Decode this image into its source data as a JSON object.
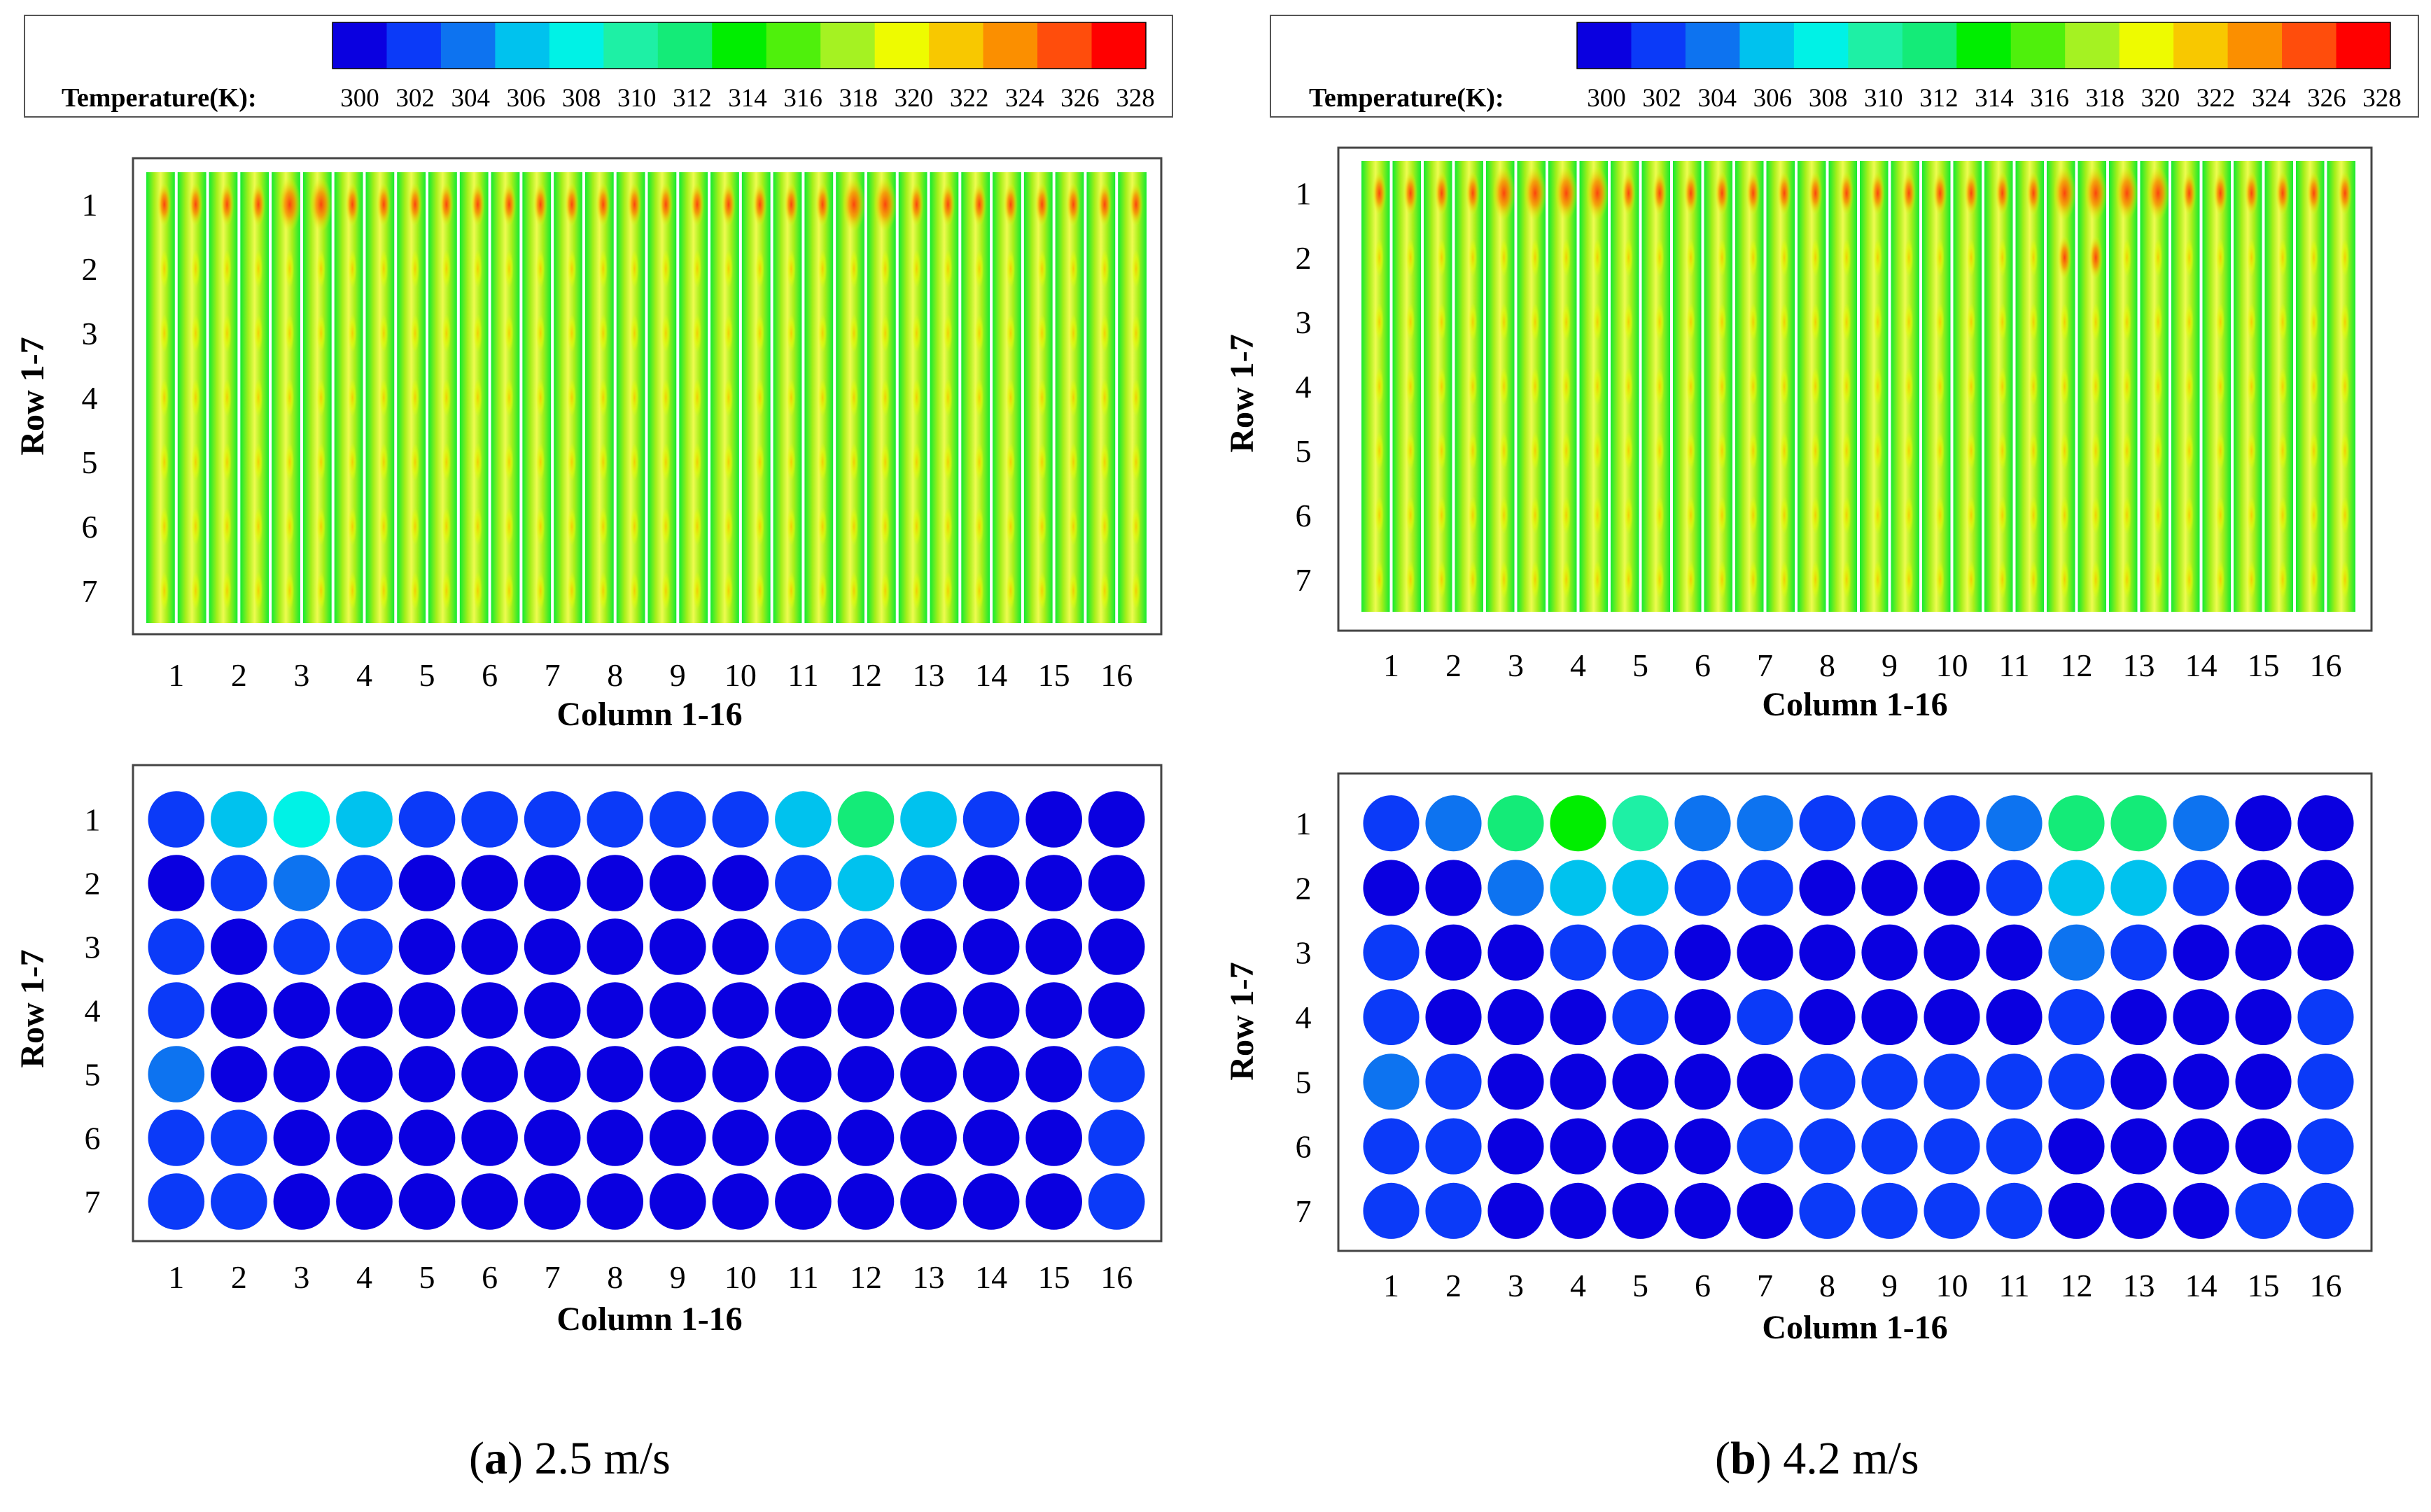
{
  "colors": {
    "colorbar": [
      "#0a00e0",
      "#0b3af8",
      "#0d73f0",
      "#00c2ee",
      "#00f2e6",
      "#1ef0a5",
      "#14eb78",
      "#00ee00",
      "#4ff00c",
      "#a5f222",
      "#eefb00",
      "#f8c800",
      "#fb8f00",
      "#ff4d0c",
      "#ff0000"
    ],
    "frame": "#000000"
  },
  "chart_data": [
    {
      "id": "a-surface",
      "type": "heatmap",
      "title": "",
      "xlabel": "Column 1-16",
      "ylabel": "Row 1-7",
      "x_ticks": [
        "1",
        "2",
        "3",
        "4",
        "5",
        "6",
        "7",
        "8",
        "9",
        "10",
        "11",
        "12",
        "13",
        "14",
        "15",
        "16"
      ],
      "y_ticks": [
        "1",
        "2",
        "3",
        "4",
        "5",
        "6",
        "7"
      ],
      "colorbar": {
        "label": "Temperature(K):",
        "ticks": [
          "300",
          "302",
          "304",
          "306",
          "308",
          "310",
          "312",
          "314",
          "316",
          "318",
          "320",
          "322",
          "324",
          "326",
          "328"
        ],
        "range": [
          300,
          328
        ]
      },
      "hotspot_rows_K": {
        "1": [
          322,
          321,
          324,
          322,
          321,
          321,
          321,
          321,
          321,
          321,
          321,
          326,
          322,
          321,
          322,
          322
        ]
      },
      "base_temperature_K": 315
    },
    {
      "id": "a-cells",
      "type": "heatmap",
      "title": "",
      "xlabel": "Column 1-16",
      "ylabel": "Row 1-7",
      "x_ticks": [
        "1",
        "2",
        "3",
        "4",
        "5",
        "6",
        "7",
        "8",
        "9",
        "10",
        "11",
        "12",
        "13",
        "14",
        "15",
        "16"
      ],
      "y_ticks": [
        "1",
        "2",
        "3",
        "4",
        "5",
        "6",
        "7"
      ],
      "cell_temperature_K": [
        [
          302.5,
          306,
          309,
          307,
          303,
          302.5,
          302,
          302.5,
          303,
          302.5,
          306,
          312,
          306,
          303,
          301,
          301
        ],
        [
          301,
          302,
          304,
          303,
          301,
          300.5,
          300.5,
          301,
          301,
          301,
          302,
          307,
          303,
          301,
          300.5,
          301
        ],
        [
          303,
          300.5,
          302,
          302,
          300.5,
          300.5,
          300.5,
          300.5,
          300.5,
          301,
          302,
          303,
          300.5,
          300.5,
          300.5,
          301
        ],
        [
          303,
          301,
          301,
          301,
          300.5,
          300.5,
          300.5,
          300.5,
          301,
          300.5,
          301,
          301,
          300.5,
          300.5,
          300.5,
          301
        ],
        [
          304,
          301,
          300.5,
          300.5,
          300.5,
          300.5,
          300.5,
          300.5,
          300.5,
          300.5,
          300.5,
          300.5,
          300.5,
          300.5,
          300.5,
          303
        ],
        [
          303,
          302,
          300.5,
          300.5,
          300.5,
          300.5,
          300.5,
          300.5,
          300.5,
          300.5,
          300.5,
          300.5,
          300.5,
          300.5,
          300.5,
          303
        ],
        [
          303.5,
          302,
          300.5,
          300.5,
          300.5,
          300.5,
          300.5,
          300.5,
          300.5,
          300.5,
          300.5,
          300.5,
          300.5,
          300.5,
          300.5,
          303
        ]
      ]
    },
    {
      "id": "b-surface",
      "type": "heatmap",
      "title": "",
      "xlabel": "Column 1-16",
      "ylabel": "Row 1-7",
      "x_ticks": [
        "1",
        "2",
        "3",
        "4",
        "5",
        "6",
        "7",
        "8",
        "9",
        "10",
        "11",
        "12",
        "13",
        "14",
        "15",
        "16"
      ],
      "y_ticks": [
        "1",
        "2",
        "3",
        "4",
        "5",
        "6",
        "7"
      ],
      "colorbar": {
        "label": "Temperature(K):",
        "ticks": [
          "300",
          "302",
          "304",
          "306",
          "308",
          "310",
          "312",
          "314",
          "316",
          "318",
          "320",
          "322",
          "324",
          "326",
          "328"
        ],
        "range": [
          300,
          328
        ]
      },
      "hotspot_rows_K": {
        "1": [
          322,
          321,
          325,
          326,
          322,
          321,
          321,
          321,
          321,
          321,
          322,
          326,
          325,
          321,
          322,
          321
        ],
        "2": [
          318,
          318,
          318,
          318,
          318,
          318,
          318,
          318,
          318,
          318,
          318,
          323,
          318,
          318,
          318,
          318
        ]
      },
      "base_temperature_K": 315
    },
    {
      "id": "b-cells",
      "type": "heatmap",
      "title": "",
      "xlabel": "Column 1-16",
      "ylabel": "Row 1-7",
      "x_ticks": [
        "1",
        "2",
        "3",
        "4",
        "5",
        "6",
        "7",
        "8",
        "9",
        "10",
        "11",
        "12",
        "13",
        "14",
        "15",
        "16"
      ],
      "y_ticks": [
        "1",
        "2",
        "3",
        "4",
        "5",
        "6",
        "7"
      ],
      "cell_temperature_K": [
        [
          302,
          305,
          313,
          314,
          310,
          305,
          304,
          303,
          302.5,
          303,
          305,
          313,
          313,
          304,
          301,
          301
        ],
        [
          301,
          301.5,
          304,
          307,
          306,
          303,
          302,
          301,
          301,
          301,
          302,
          306,
          306,
          302,
          301,
          301
        ],
        [
          302,
          300.5,
          301,
          302,
          302.5,
          300.5,
          300.5,
          300.5,
          300.5,
          301,
          300.5,
          305,
          302,
          300.5,
          300.5,
          301
        ],
        [
          303,
          301,
          300.5,
          301,
          302,
          301,
          302,
          301.5,
          301,
          301,
          301,
          303,
          300.5,
          300.5,
          300.5,
          302
        ],
        [
          304,
          302,
          300.5,
          300.5,
          301,
          301,
          301,
          302,
          302.5,
          302,
          302,
          302,
          300.5,
          300.5,
          300.5,
          303
        ],
        [
          303,
          302,
          300.5,
          300.5,
          300.5,
          300.5,
          302,
          302,
          302,
          302,
          302,
          301,
          300.5,
          300.5,
          300.5,
          303
        ],
        [
          303.5,
          302,
          300.5,
          300.5,
          300.5,
          300.5,
          301,
          302,
          302,
          302,
          302,
          301,
          300.5,
          300.5,
          302,
          303
        ]
      ]
    }
  ],
  "captions": [
    {
      "letter": "a",
      "text": " 2.5 m/s"
    },
    {
      "letter": "b",
      "text": " 4.2 m/s"
    }
  ]
}
